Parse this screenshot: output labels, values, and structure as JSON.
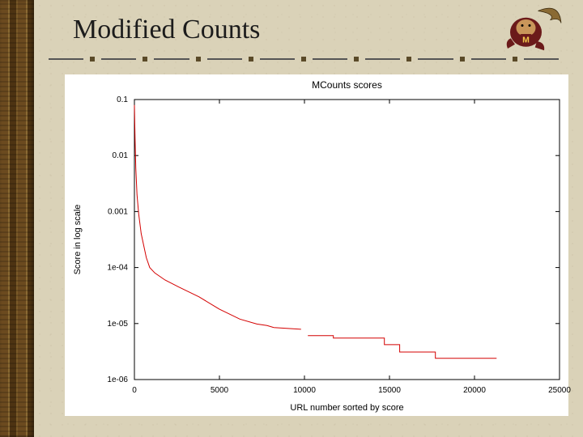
{
  "slide_title": "Modified Counts",
  "chart": {
    "type": "line-log",
    "title": "MCounts scores",
    "title_fontsize": 12,
    "xlabel": "URL number sorted by score",
    "ylabel": "Score in log scale",
    "label_fontsize": 11,
    "tick_fontsize": 10,
    "xlim": [
      0,
      25000
    ],
    "xtick_step": 5000,
    "xticks": [
      "0",
      "5000",
      "10000",
      "15000",
      "20000",
      "25000"
    ],
    "yscale": "log",
    "ylim_exp": [
      -6,
      -1
    ],
    "ytick_labels": [
      "0.1",
      "0.01",
      "0.001",
      "1e-04",
      "1e-05",
      "1e-06"
    ],
    "series_color": "#d40000",
    "axis_color": "#000000",
    "background_color": "#ffffff",
    "line_width": 1.0,
    "data": [
      [
        0,
        0.08
      ],
      [
        40,
        0.02
      ],
      [
        80,
        0.006
      ],
      [
        150,
        0.002
      ],
      [
        250,
        0.0009
      ],
      [
        400,
        0.0004
      ],
      [
        700,
        0.00015
      ],
      [
        900,
        0.0001
      ],
      [
        1200,
        8e-05
      ],
      [
        1800,
        6e-05
      ],
      [
        2600,
        4.5e-05
      ],
      [
        3800,
        3e-05
      ],
      [
        5000,
        1.8e-05
      ],
      [
        6200,
        1.2e-05
      ],
      [
        7200,
        9.8e-06
      ],
      [
        7800,
        9.2e-06
      ],
      [
        8200,
        8.5e-06
      ],
      [
        9800,
        7.9e-06
      ],
      [
        10200,
        6.1e-06
      ],
      [
        10200,
        6.1e-06
      ],
      [
        11700,
        6.1e-06
      ],
      [
        11700,
        5.5e-06
      ],
      [
        11700,
        5.5e-06
      ],
      [
        14700,
        5.5e-06
      ],
      [
        14700,
        4.2e-06
      ],
      [
        14700,
        4.2e-06
      ],
      [
        15600,
        4.2e-06
      ],
      [
        15600,
        3.1e-06
      ],
      [
        15600,
        3.1e-06
      ],
      [
        17700,
        3.1e-06
      ],
      [
        17700,
        2.4e-06
      ],
      [
        17700,
        2.4e-06
      ],
      [
        21300,
        2.4e-06
      ]
    ],
    "break_after_index": 17
  },
  "slide_bg_color": "#dad2b8",
  "mascot_colors": {
    "body": "#6b1a1a",
    "tail": "#8a6a33",
    "letter": "#f2c84b"
  }
}
